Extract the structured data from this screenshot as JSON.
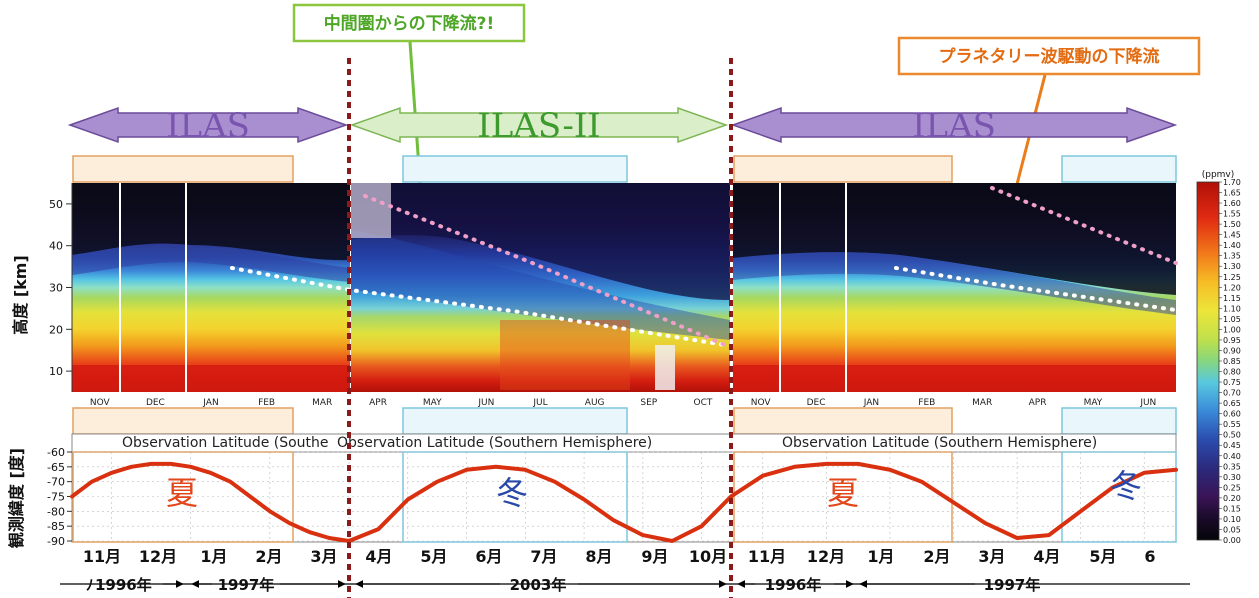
{
  "callouts": {
    "green": "中間圏からの下降流?!",
    "orange": "プラネタリー波駆動の下降流"
  },
  "instruments": [
    "ILAS",
    "ILAS-II",
    "ILAS"
  ],
  "chart_data": [
    {
      "type": "heatmap",
      "title": "",
      "ylabel": "高度 [km]",
      "ylim": [
        5,
        55
      ],
      "yticks": [
        10,
        20,
        30,
        40,
        50
      ],
      "panels": [
        {
          "x_ticks": [
            "NOV",
            "DEC",
            "JAN",
            "FEB",
            "MAR"
          ]
        },
        {
          "x_ticks": [
            "APR",
            "MAY",
            "JUN",
            "JUL",
            "AUG",
            "SEP",
            "OCT"
          ]
        },
        {
          "x_ticks": [
            "NOV",
            "DEC",
            "JAN",
            "FEB",
            "MAR",
            "APR",
            "MAY",
            "JUN"
          ]
        }
      ],
      "colorbar": {
        "unit": "(ppmv)",
        "min": 0.0,
        "max": 1.7,
        "step": 0.05,
        "labels": [
          "1.70",
          "1.65",
          "1.60",
          "1.55",
          "1.50",
          "1.45",
          "1.40",
          "1.35",
          "1.30",
          "1.25",
          "1.20",
          "1.15",
          "1.10",
          "1.05",
          "1.00",
          "0.95",
          "0.90",
          "0.85",
          "0.80",
          "0.75",
          "0.70",
          "0.65",
          "0.60",
          "0.55",
          "0.50",
          "0.45",
          "0.40",
          "0.35",
          "0.30",
          "0.25",
          "0.20",
          "0.15",
          "0.10",
          "0.05",
          "0.00"
        ]
      }
    },
    {
      "type": "line",
      "title": "Observation Latitude (Southern Hemisphere)",
      "title_fragment": "Observation Latitude (Southe",
      "ylabel": "観測緯度 [度]",
      "ylim": [
        -90,
        -60
      ],
      "yticks": [
        -60,
        -65,
        -70,
        -75,
        -80,
        -85,
        -90
      ],
      "season_labels": [
        "夏",
        "冬",
        "夏",
        "冬"
      ],
      "series": [
        {
          "segment": "1996-1997",
          "x": [
            0,
            0.25,
            0.5,
            0.75,
            1.0,
            1.25,
            1.5,
            1.75,
            2.0,
            2.25,
            2.5,
            2.75,
            3.0,
            3.25,
            3.5
          ],
          "y": [
            -75,
            -70,
            -67,
            -65,
            -64,
            -64,
            -65,
            -67,
            -70,
            -75,
            -80,
            -84,
            -87,
            -89,
            -90
          ]
        },
        {
          "segment": "2003",
          "x": [
            3.5,
            4.0,
            4.5,
            5.0,
            5.5,
            6.0,
            6.5,
            7.0,
            7.5,
            8.0,
            8.5,
            9.0,
            9.5,
            10.0
          ],
          "y": [
            -90,
            -86,
            -76,
            -70,
            -66,
            -65,
            -66,
            -70,
            -76,
            -83,
            -88,
            -90,
            -85,
            -75
          ]
        },
        {
          "segment": "1996-1997",
          "x": [
            10.0,
            10.5,
            11.0,
            11.5,
            12.0,
            12.5,
            13.0,
            13.5,
            14.0,
            14.5,
            15.0,
            15.5,
            16.0,
            16.5,
            17.0
          ],
          "y": [
            -75,
            -68,
            -65,
            -64,
            -64,
            -66,
            -70,
            -77,
            -84,
            -89,
            -88,
            -80,
            -72,
            -67,
            -66
          ]
        }
      ]
    }
  ],
  "month_labels": [
    "11月",
    "12月",
    "1月",
    "2月",
    "3月",
    "4月",
    "5月",
    "6月",
    "7月",
    "8月",
    "9月",
    "10月",
    "11月",
    "12月",
    "1月",
    "2月",
    "3月",
    "4月",
    "5月",
    "6"
  ],
  "year_labels": [
    "1996年",
    "1997年",
    "2003年",
    "1996年",
    "1997年"
  ],
  "year_glyph_left": "ﾉ"
}
